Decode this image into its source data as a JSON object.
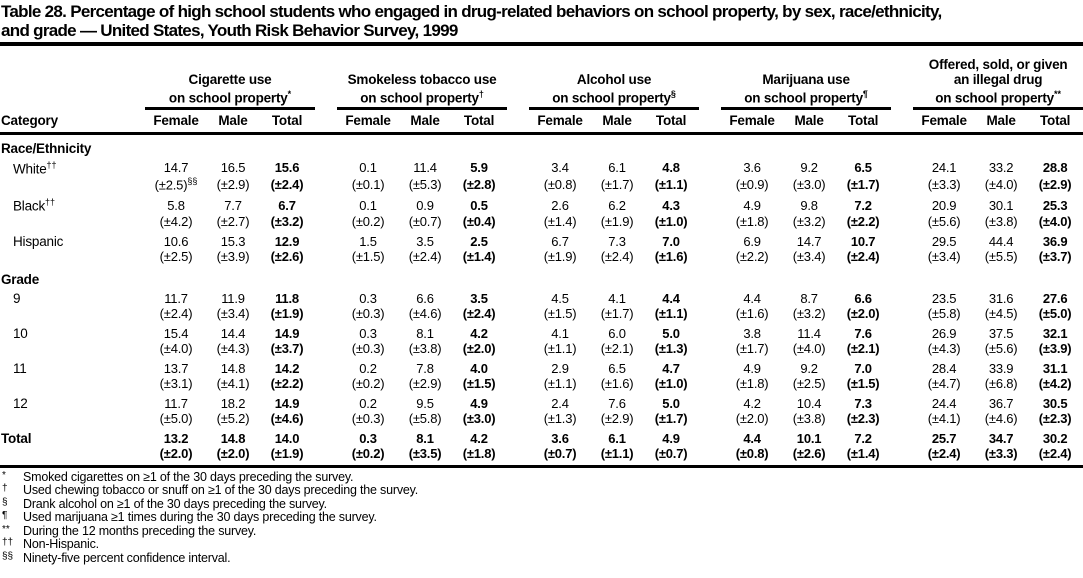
{
  "title": {
    "line1": "Table 28. Percentage of high school students who engaged in drug-related behaviors on school property, by sex, race/ethnicity,",
    "line2": "and grade — United States, Youth Risk Behavior Survey, 1999"
  },
  "table": {
    "category_header": "Category",
    "sub_headers": [
      "Female",
      "Male",
      "Total"
    ],
    "groups": [
      {
        "lines": [
          "Cigarette use",
          "on school property"
        ],
        "sup": "*"
      },
      {
        "lines": [
          "Smokeless tobacco use",
          "on school property"
        ],
        "sup": "†"
      },
      {
        "lines": [
          "Alcohol use",
          "on school property"
        ],
        "sup": "§"
      },
      {
        "lines": [
          "Marijuana use",
          "on school property"
        ],
        "sup": "¶"
      },
      {
        "lines": [
          "Offered, sold, or given",
          "an illegal drug",
          "on school property"
        ],
        "sup": "**"
      }
    ],
    "rows": [
      {
        "type": "section",
        "label": "Race/Ethnicity"
      },
      {
        "label": "White",
        "sup": "††",
        "indent": true,
        "values": [
          "14.7",
          "16.5",
          "15.6",
          "0.1",
          "11.4",
          "5.9",
          "3.4",
          "6.1",
          "4.8",
          "3.6",
          "9.2",
          "6.5",
          "24.1",
          "33.2",
          "28.8"
        ],
        "ci": [
          {
            "t": "(±2.5)",
            "sup": "§§"
          },
          "(±2.9)",
          "(±2.4)",
          "(±0.1)",
          "(±5.3)",
          "(±2.8)",
          "(±0.8)",
          "(±1.7)",
          "(±1.1)",
          "(±0.9)",
          "(±3.0)",
          "(±1.7)",
          "(±3.3)",
          "(±4.0)",
          "(±2.9)"
        ]
      },
      {
        "label": "Black",
        "sup": "††",
        "indent": true,
        "values": [
          "5.8",
          "7.7",
          "6.7",
          "0.1",
          "0.9",
          "0.5",
          "2.6",
          "6.2",
          "4.3",
          "4.9",
          "9.8",
          "7.2",
          "20.9",
          "30.1",
          "25.3"
        ],
        "ci": [
          "(±4.2)",
          "(±2.7)",
          "(±3.2)",
          "(±0.2)",
          "(±0.7)",
          "(±0.4)",
          "(±1.4)",
          "(±1.9)",
          "(±1.0)",
          "(±1.8)",
          "(±3.2)",
          "(±2.2)",
          "(±5.6)",
          "(±3.8)",
          "(±4.0)"
        ]
      },
      {
        "label": "Hispanic",
        "indent": true,
        "values": [
          "10.6",
          "15.3",
          "12.9",
          "1.5",
          "3.5",
          "2.5",
          "6.7",
          "7.3",
          "7.0",
          "6.9",
          "14.7",
          "10.7",
          "29.5",
          "44.4",
          "36.9"
        ],
        "ci": [
          "(±2.5)",
          "(±3.9)",
          "(±2.6)",
          "(±1.5)",
          "(±2.4)",
          "(±1.4)",
          "(±1.9)",
          "(±2.4)",
          "(±1.6)",
          "(±2.2)",
          "(±3.4)",
          "(±2.4)",
          "(±3.4)",
          "(±5.5)",
          "(±3.7)"
        ]
      },
      {
        "type": "section",
        "label": "Grade"
      },
      {
        "label": "9",
        "indent": true,
        "values": [
          "11.7",
          "11.9",
          "11.8",
          "0.3",
          "6.6",
          "3.5",
          "4.5",
          "4.1",
          "4.4",
          "4.4",
          "8.7",
          "6.6",
          "23.5",
          "31.6",
          "27.6"
        ],
        "ci": [
          "(±2.4)",
          "(±3.4)",
          "(±1.9)",
          "(±0.3)",
          "(±4.6)",
          "(±2.4)",
          "(±1.5)",
          "(±1.7)",
          "(±1.1)",
          "(±1.6)",
          "(±3.2)",
          "(±2.0)",
          "(±5.8)",
          "(±4.5)",
          "(±5.0)"
        ]
      },
      {
        "label": "10",
        "indent": true,
        "values": [
          "15.4",
          "14.4",
          "14.9",
          "0.3",
          "8.1",
          "4.2",
          "4.1",
          "6.0",
          "5.0",
          "3.8",
          "11.4",
          "7.6",
          "26.9",
          "37.5",
          "32.1"
        ],
        "ci": [
          "(±4.0)",
          "(±4.3)",
          "(±3.7)",
          "(±0.3)",
          "(±3.8)",
          "(±2.0)",
          "(±1.1)",
          "(±2.1)",
          "(±1.3)",
          "(±1.7)",
          "(±4.0)",
          "(±2.1)",
          "(±4.3)",
          "(±5.6)",
          "(±3.9)"
        ]
      },
      {
        "label": "11",
        "indent": true,
        "values": [
          "13.7",
          "14.8",
          "14.2",
          "0.2",
          "7.8",
          "4.0",
          "2.9",
          "6.5",
          "4.7",
          "4.9",
          "9.2",
          "7.0",
          "28.4",
          "33.9",
          "31.1"
        ],
        "ci": [
          "(±3.1)",
          "(±4.1)",
          "(±2.2)",
          "(±0.2)",
          "(±2.9)",
          "(±1.5)",
          "(±1.1)",
          "(±1.6)",
          "(±1.0)",
          "(±1.8)",
          "(±2.5)",
          "(±1.5)",
          "(±4.7)",
          "(±6.8)",
          "(±4.2)"
        ]
      },
      {
        "label": "12",
        "indent": true,
        "values": [
          "11.7",
          "18.2",
          "14.9",
          "0.2",
          "9.5",
          "4.9",
          "2.4",
          "7.6",
          "5.0",
          "4.2",
          "10.4",
          "7.3",
          "24.4",
          "36.7",
          "30.5"
        ],
        "ci": [
          "(±5.0)",
          "(±5.2)",
          "(±4.6)",
          "(±0.3)",
          "(±5.8)",
          "(±3.0)",
          "(±1.3)",
          "(±2.9)",
          "(±1.7)",
          "(±2.0)",
          "(±3.8)",
          "(±2.3)",
          "(±4.1)",
          "(±4.6)",
          "(±2.3)"
        ]
      },
      {
        "label": "Total",
        "bold": true,
        "values": [
          "13.2",
          "14.8",
          "14.0",
          "0.3",
          "8.1",
          "4.2",
          "3.6",
          "6.1",
          "4.9",
          "4.4",
          "10.1",
          "7.2",
          "25.7",
          "34.7",
          "30.2"
        ],
        "ci": [
          "(±2.0)",
          "(±2.0)",
          "(±1.9)",
          "(±0.2)",
          "(±3.5)",
          "(±1.8)",
          "(±0.7)",
          "(±1.1)",
          "(±0.7)",
          "(±0.8)",
          "(±2.6)",
          "(±1.4)",
          "(±2.4)",
          "(±3.3)",
          "(±2.4)"
        ]
      }
    ]
  },
  "footnotes": [
    {
      "marker": "*",
      "text": "Smoked cigarettes on ≥1 of the 30 days preceding the survey."
    },
    {
      "marker": "†",
      "text": "Used chewing tobacco or snuff on ≥1 of the 30 days preceding the survey."
    },
    {
      "marker": "§",
      "text": "Drank alcohol on ≥1 of the 30 days preceding the survey."
    },
    {
      "marker": "¶",
      "text": "Used marijuana ≥1 times during the 30 days preceding the survey."
    },
    {
      "marker": "**",
      "text": "During the 12 months preceding the survey."
    },
    {
      "marker": "††",
      "text": "Non-Hispanic."
    },
    {
      "marker": "§§",
      "text": "Ninety-five percent confidence interval."
    }
  ]
}
